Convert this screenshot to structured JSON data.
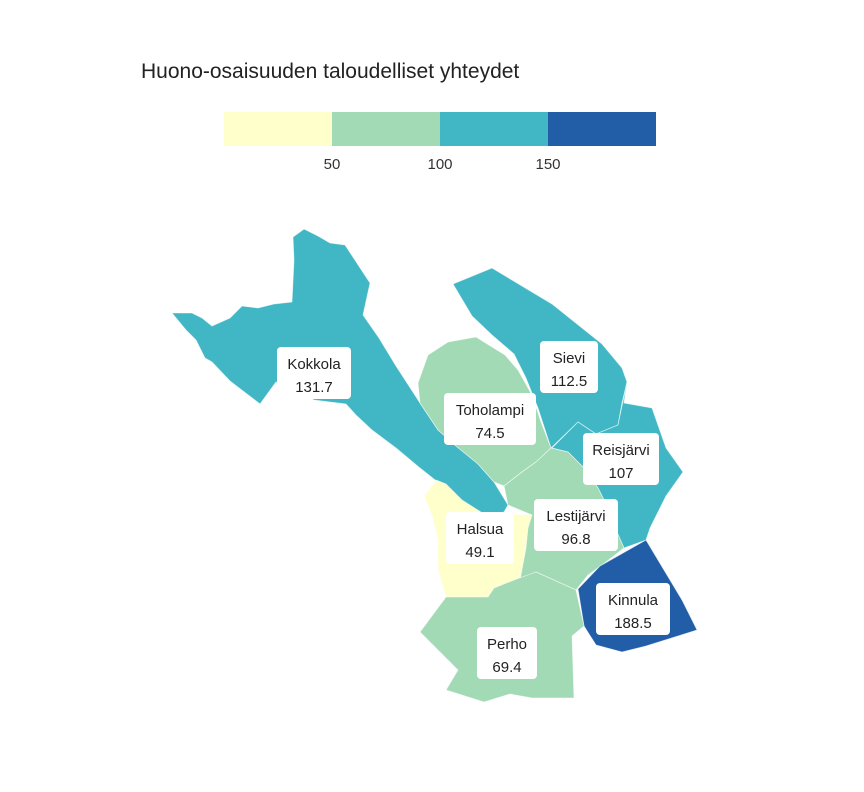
{
  "title": "Huono-osaisuuden taloudelliset yhteydet",
  "legend": {
    "colors": [
      "#ffffcc",
      "#a1dab4",
      "#41b6c4",
      "#225ea8"
    ],
    "ticks": [
      "50",
      "100",
      "150"
    ]
  },
  "regions": [
    {
      "id": "kokkola",
      "name": "Kokkola",
      "value": "131.7",
      "color": "#41b6c4"
    },
    {
      "id": "sievi",
      "name": "Sievi",
      "value": "112.5",
      "color": "#41b6c4"
    },
    {
      "id": "toholampi",
      "name": "Toholampi",
      "value": "74.5",
      "color": "#a1dab4"
    },
    {
      "id": "reisjarvi",
      "name": "Reisjärvi",
      "value": "107",
      "color": "#41b6c4"
    },
    {
      "id": "halsua",
      "name": "Halsua",
      "value": "49.1",
      "color": "#ffffcc"
    },
    {
      "id": "lestijarvi",
      "name": "Lestijärvi",
      "value": "96.8",
      "color": "#a1dab4"
    },
    {
      "id": "kinnula",
      "name": "Kinnula",
      "value": "188.5",
      "color": "#225ea8"
    },
    {
      "id": "perho",
      "name": "Perho",
      "value": "69.4",
      "color": "#a1dab4"
    }
  ]
}
